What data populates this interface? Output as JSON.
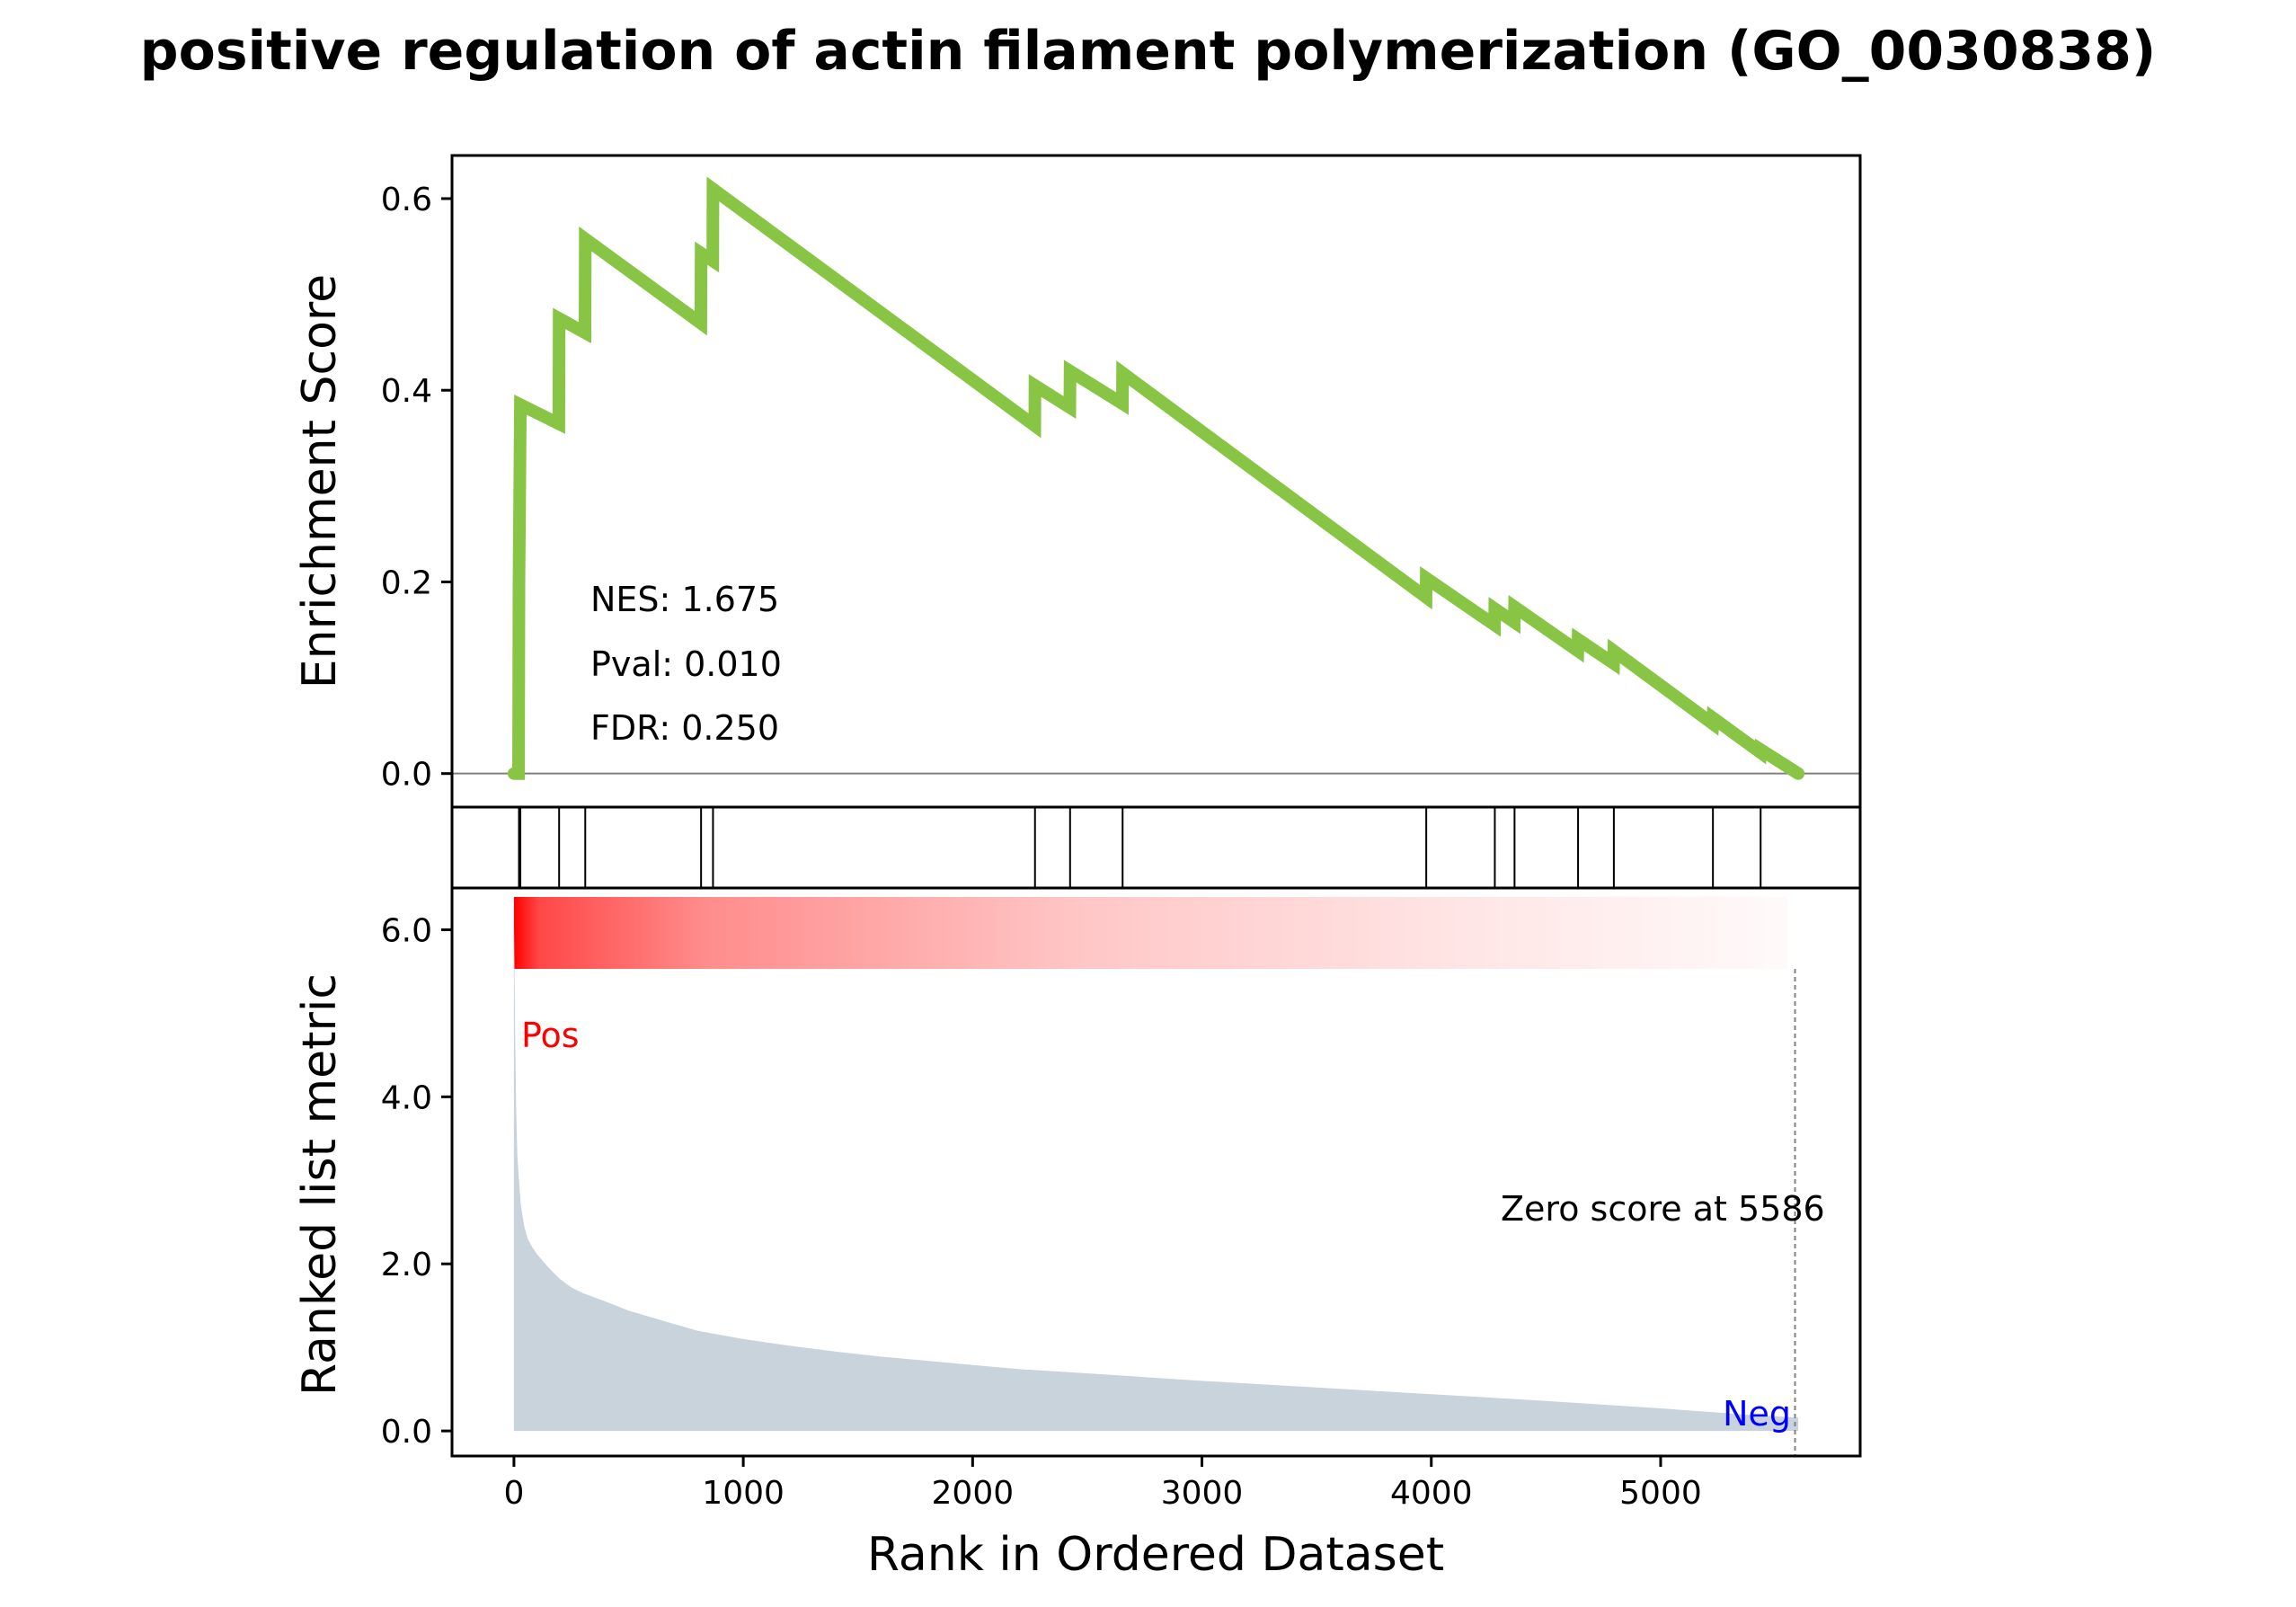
{
  "chart_data": {
    "type": "line",
    "title": "positive regulation of actin filament polymerization (GO_0030838)",
    "xlabel": "Rank in Ordered Dataset",
    "es_ylabel": "Enrichment Score",
    "rank_ylabel": "Ranked list metric",
    "xlim": [
      -270,
      5870
    ],
    "x_ticks": [
      0,
      1000,
      2000,
      3000,
      4000,
      5000
    ],
    "es_ylim": [
      -0.035,
      0.645
    ],
    "es_ticks": [
      0.0,
      0.2,
      0.4,
      0.6
    ],
    "es_tick_labels": [
      "0.0",
      "0.2",
      "0.4",
      "0.6"
    ],
    "rank_ylim": [
      -0.3,
      6.5
    ],
    "rank_ticks": [
      0,
      2,
      4,
      6
    ],
    "rank_tick_labels": [
      "0.0",
      "2.0",
      "4.0",
      "6.0"
    ],
    "n_genes": 5600,
    "zero_score_rank": 5586,
    "stats": {
      "nes": "NES: 1.675",
      "pval": "Pval: 0.010",
      "fdr": "FDR: 0.250"
    },
    "pos_label": "Pos",
    "neg_label": "Neg",
    "zero_label": "Zero score at 5586",
    "line_color": "#88c544",
    "metric_fill_color": "#c9d3dc",
    "heatmap_color": "#ff0000",
    "pos_color": "#ff0000",
    "neg_color": "#0000ff",
    "hits": [
      22,
      28,
      197,
      311,
      816,
      868,
      2272,
      2425,
      2654,
      3978,
      4277,
      4363,
      4640,
      4796,
      5228,
      5436
    ],
    "es_curve": [
      [
        0,
        0.0
      ],
      [
        20,
        0.0
      ],
      [
        22,
        0.195
      ],
      [
        28,
        0.385
      ],
      [
        196,
        0.365
      ],
      [
        197,
        0.475
      ],
      [
        310,
        0.46
      ],
      [
        311,
        0.558
      ],
      [
        815,
        0.47
      ],
      [
        816,
        0.543
      ],
      [
        867,
        0.535
      ],
      [
        868,
        0.61
      ],
      [
        2271,
        0.363
      ],
      [
        2272,
        0.405
      ],
      [
        2424,
        0.382
      ],
      [
        2425,
        0.42
      ],
      [
        2653,
        0.386
      ],
      [
        2654,
        0.418
      ],
      [
        3977,
        0.184
      ],
      [
        3978,
        0.204
      ],
      [
        4276,
        0.155
      ],
      [
        4277,
        0.172
      ],
      [
        4362,
        0.158
      ],
      [
        4363,
        0.174
      ],
      [
        4639,
        0.128
      ],
      [
        4640,
        0.14
      ],
      [
        4795,
        0.115
      ],
      [
        4796,
        0.128
      ],
      [
        5227,
        0.052
      ],
      [
        5228,
        0.058
      ],
      [
        5435,
        0.022
      ],
      [
        5436,
        0.025
      ],
      [
        5600,
        0.0
      ]
    ],
    "ranked_metric": [
      [
        0,
        6.15
      ],
      [
        3,
        5.4
      ],
      [
        6,
        4.6
      ],
      [
        10,
        3.8
      ],
      [
        15,
        3.3
      ],
      [
        22,
        3.0
      ],
      [
        30,
        2.7
      ],
      [
        45,
        2.45
      ],
      [
        60,
        2.3
      ],
      [
        80,
        2.2
      ],
      [
        100,
        2.12
      ],
      [
        130,
        2.02
      ],
      [
        160,
        1.93
      ],
      [
        200,
        1.82
      ],
      [
        250,
        1.72
      ],
      [
        300,
        1.65
      ],
      [
        400,
        1.55
      ],
      [
        500,
        1.44
      ],
      [
        600,
        1.36
      ],
      [
        700,
        1.28
      ],
      [
        800,
        1.2
      ],
      [
        900,
        1.15
      ],
      [
        1000,
        1.1
      ],
      [
        1200,
        1.02
      ],
      [
        1400,
        0.95
      ],
      [
        1600,
        0.89
      ],
      [
        1800,
        0.84
      ],
      [
        2000,
        0.79
      ],
      [
        2200,
        0.74
      ],
      [
        2500,
        0.69
      ],
      [
        3000,
        0.6
      ],
      [
        3500,
        0.52
      ],
      [
        4000,
        0.44
      ],
      [
        4500,
        0.36
      ],
      [
        5000,
        0.27
      ],
      [
        5400,
        0.19
      ],
      [
        5600,
        0.16
      ]
    ]
  }
}
